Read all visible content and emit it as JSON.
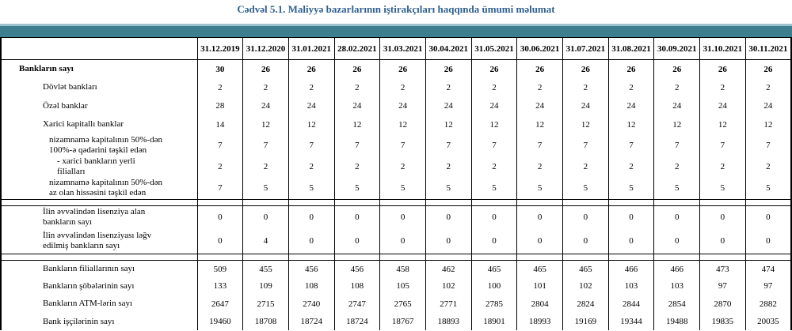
{
  "title": "Cədvəl 5.1. Maliyyə bazarlarının iştirakçıları haqqında ümumi məlumat",
  "columns": [
    "31.12.2019",
    "31.12.2020",
    "31.01.2021",
    "28.02.2021",
    "31.03.2021",
    "30.04.2021",
    "31.05.2021",
    "30.06.2021",
    "31.07.2021",
    "31.08.2021",
    "30.09.2021",
    "31.10.2021",
    "30.11.2021"
  ],
  "sections": [
    {
      "rows": [
        {
          "label": "Bankların sayı",
          "values": [
            30,
            26,
            26,
            26,
            26,
            26,
            26,
            26,
            26,
            26,
            26,
            26,
            26
          ]
        },
        {
          "label": "Dövlət bankları",
          "values": [
            2,
            2,
            2,
            2,
            2,
            2,
            2,
            2,
            2,
            2,
            2,
            2,
            2
          ]
        },
        {
          "label": "Özəl banklar",
          "values": [
            28,
            24,
            24,
            24,
            24,
            24,
            24,
            24,
            24,
            24,
            24,
            24,
            24
          ]
        },
        {
          "label": "Xarici kapitallı banklar",
          "values": [
            14,
            12,
            12,
            12,
            12,
            12,
            12,
            12,
            12,
            12,
            12,
            12,
            12
          ]
        },
        {
          "label": "nizamnamə kapitalının 50%-dən 100%-ə qədərini təşkil edən",
          "values": [
            7,
            7,
            7,
            7,
            7,
            7,
            7,
            7,
            7,
            7,
            7,
            7,
            7
          ]
        },
        {
          "label": "-  xarici bankların yerli filialları",
          "values": [
            2,
            2,
            2,
            2,
            2,
            2,
            2,
            2,
            2,
            2,
            2,
            2,
            2
          ]
        },
        {
          "label": "nizamnamə kapitalının 50%-dən az olan hissəsini  təşkil edən",
          "values": [
            7,
            5,
            5,
            5,
            5,
            5,
            5,
            5,
            5,
            5,
            5,
            5,
            5
          ]
        }
      ]
    },
    {
      "rows": [
        {
          "label": "İlin əvvəlindən lisenziya alan bankların sayı",
          "values": [
            0,
            0,
            0,
            0,
            0,
            0,
            0,
            0,
            0,
            0,
            0,
            0,
            0
          ]
        },
        {
          "label": "İlin əvvəlindən lisenziyası ləğv edilmiş bankların sayı",
          "values": [
            0,
            4,
            0,
            0,
            0,
            0,
            0,
            0,
            0,
            0,
            0,
            0,
            0
          ]
        }
      ]
    },
    {
      "rows": [
        {
          "label": "Bankların filiallarının sayı",
          "values": [
            509,
            455,
            456,
            456,
            458,
            462,
            465,
            465,
            465,
            466,
            466,
            473,
            474
          ]
        },
        {
          "label": "Bankların şöbələrinin sayı",
          "values": [
            133,
            109,
            108,
            108,
            105,
            102,
            100,
            101,
            102,
            103,
            103,
            97,
            97
          ]
        },
        {
          "label": "Bankların ATM-lərin sayı",
          "values": [
            2647,
            2715,
            2740,
            2747,
            2765,
            2771,
            2785,
            2804,
            2824,
            2844,
            2854,
            2870,
            2882
          ]
        },
        {
          "label": "Bank işçilərinin sayı",
          "values": [
            19460,
            18708,
            18724,
            18724,
            18767,
            18893,
            18901,
            18993,
            19169,
            19344,
            19488,
            19835,
            20035
          ]
        }
      ]
    }
  ]
}
